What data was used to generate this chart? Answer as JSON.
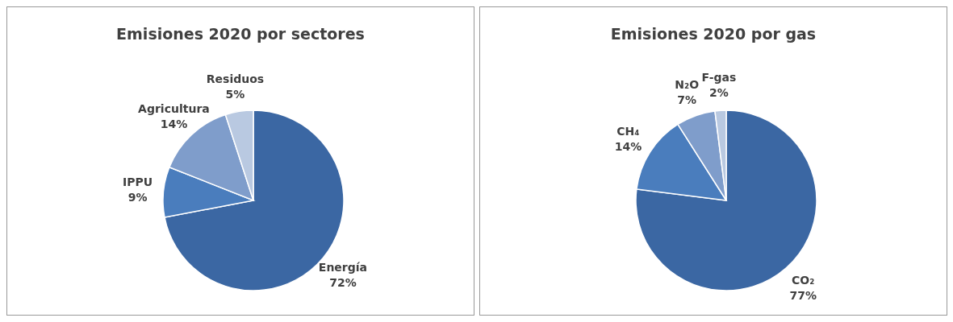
{
  "chart_data": [
    {
      "type": "pie",
      "title": "Emisiones 2020 por sectores",
      "categories": [
        "Energía",
        "IPPU",
        "Agricultura",
        "Residuos"
      ],
      "values": [
        72,
        9,
        14,
        5
      ],
      "value_labels": [
        "72%",
        "9%",
        "14%",
        "5%"
      ],
      "colors": [
        "#3b67a3",
        "#4a7dbd",
        "#7f9dcb",
        "#b9c9e1"
      ],
      "legend": false
    },
    {
      "type": "pie",
      "title": "Emisiones 2020 por gas",
      "categories": [
        "CO₂",
        "CH₄",
        "N₂O",
        "F-gas"
      ],
      "values": [
        77,
        14,
        7,
        2
      ],
      "value_labels": [
        "77%",
        "14%",
        "7%",
        "2%"
      ],
      "colors": [
        "#3b67a3",
        "#4a7dbd",
        "#7f9dcb",
        "#b9c9e1"
      ],
      "legend": false
    }
  ]
}
